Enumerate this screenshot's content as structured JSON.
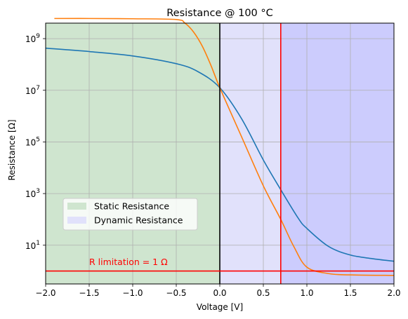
{
  "chart_data": {
    "type": "line",
    "title": "Resistance @ 100 °C",
    "xlabel": "Voltage [V]",
    "ylabel": "Resistance [Ω]",
    "xlim": [
      -2.0,
      2.0
    ],
    "ylim_log10": [
      -0.5,
      9.6
    ],
    "yscale": "log",
    "grid": true,
    "x_ticks": [
      "−2.0",
      "−1.5",
      "−1.0",
      "−0.5",
      "0.0",
      "0.5",
      "1.0",
      "1.5",
      "2.0"
    ],
    "x_tick_values": [
      -2.0,
      -1.5,
      -1.0,
      -0.5,
      0.0,
      0.5,
      1.0,
      1.5,
      2.0
    ],
    "y_tick_exponents": [
      1,
      3,
      5,
      7,
      9
    ],
    "legend": {
      "position": "center-left",
      "entries": [
        "Static Resistance",
        "Dynamic Resistance"
      ]
    },
    "regions": [
      {
        "name": "Static Resistance",
        "x_from": -2.0,
        "x_to": 0.0,
        "color": "#cfe5cf"
      },
      {
        "name": "Dynamic Resistance",
        "x_from": 0.0,
        "x_to": 0.7,
        "color": "#e1e1fb"
      },
      {
        "name": "",
        "x_from": 0.7,
        "x_to": 2.0,
        "color": "#ccccfd"
      }
    ],
    "vlines": [
      {
        "x": 0.0,
        "color": "#000000"
      },
      {
        "x": 0.7,
        "color": "#ff0000"
      }
    ],
    "hlines": [
      {
        "y": 1,
        "color": "#ff0000"
      }
    ],
    "annotation": {
      "text": "R limitation = 1 Ω",
      "x": -1.5,
      "y": 1
    },
    "series": [
      {
        "color": "#1f77b4",
        "x": [
          -2.0,
          -1.5,
          -1.0,
          -0.5,
          -0.25,
          0.0,
          0.25,
          0.5,
          0.7,
          0.9,
          1.0,
          1.25,
          1.5,
          1.75,
          2.0
        ],
        "log10_y": [
          8.63,
          8.5,
          8.33,
          8.03,
          7.72,
          7.1,
          5.9,
          4.3,
          3.15,
          2.05,
          1.65,
          0.95,
          0.62,
          0.48,
          0.38
        ]
      },
      {
        "color": "#ff7f0e",
        "x": [
          -1.9,
          -1.5,
          -1.0,
          -0.5,
          -0.4,
          -0.3,
          -0.2,
          -0.1,
          0.0,
          0.25,
          0.5,
          0.7,
          0.85,
          1.0,
          1.25,
          1.5,
          2.0
        ],
        "log10_y": [
          9.78,
          9.78,
          9.77,
          9.74,
          9.6,
          9.25,
          8.7,
          7.95,
          7.1,
          5.2,
          3.3,
          2.0,
          0.95,
          0.15,
          -0.1,
          -0.15,
          -0.17
        ]
      }
    ]
  }
}
